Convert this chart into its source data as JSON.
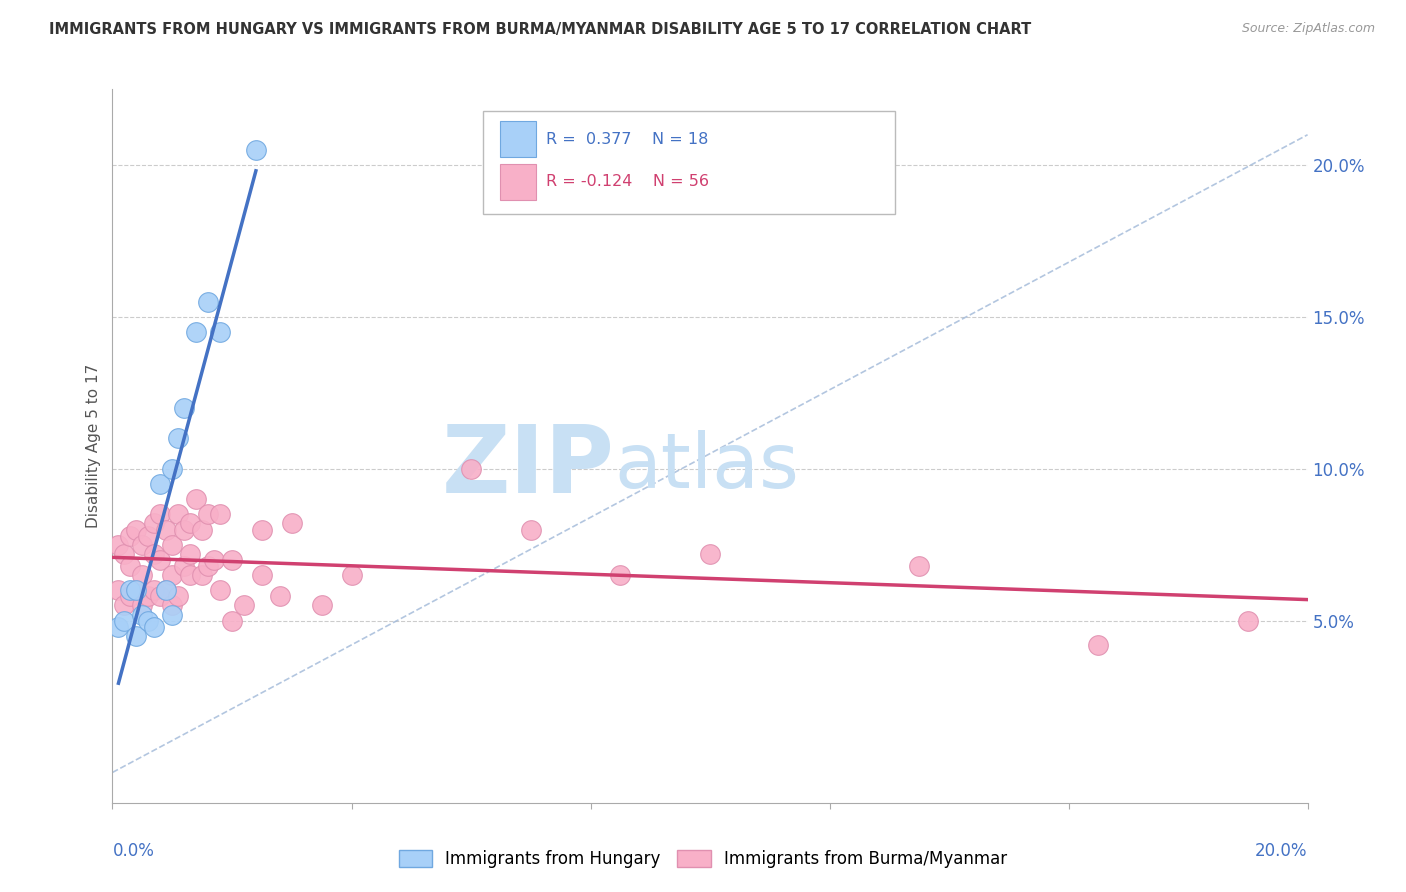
{
  "title": "IMMIGRANTS FROM HUNGARY VS IMMIGRANTS FROM BURMA/MYANMAR DISABILITY AGE 5 TO 17 CORRELATION CHART",
  "source": "Source: ZipAtlas.com",
  "ylabel": "Disability Age 5 to 17",
  "right_yticks": [
    "20.0%",
    "15.0%",
    "10.0%",
    "5.0%"
  ],
  "right_ytick_vals": [
    0.2,
    0.15,
    0.1,
    0.05
  ],
  "xlim": [
    0.0,
    0.2
  ],
  "ylim": [
    -0.01,
    0.225
  ],
  "R_hungary": 0.377,
  "N_hungary": 18,
  "R_burma": -0.124,
  "N_burma": 56,
  "color_hungary": "#A8D0F8",
  "color_burma": "#F8B0C8",
  "line_color_hungary": "#4472C4",
  "line_color_burma": "#D04070",
  "ref_line_color": "#A0B8D8",
  "watermark_zip": "ZIP",
  "watermark_atlas": "atlas",
  "watermark_color": "#C8E0F4",
  "legend_label_hungary": "Immigrants from Hungary",
  "legend_label_burma": "Immigrants from Burma/Myanmar",
  "hungary_x": [
    0.001,
    0.002,
    0.003,
    0.004,
    0.004,
    0.005,
    0.006,
    0.007,
    0.008,
    0.009,
    0.01,
    0.01,
    0.011,
    0.012,
    0.014,
    0.016,
    0.018,
    0.024
  ],
  "hungary_y": [
    0.048,
    0.05,
    0.06,
    0.045,
    0.06,
    0.052,
    0.05,
    0.048,
    0.095,
    0.06,
    0.1,
    0.052,
    0.11,
    0.12,
    0.145,
    0.155,
    0.145,
    0.205
  ],
  "burma_x": [
    0.001,
    0.001,
    0.002,
    0.002,
    0.003,
    0.003,
    0.003,
    0.004,
    0.004,
    0.005,
    0.005,
    0.005,
    0.006,
    0.006,
    0.007,
    0.007,
    0.007,
    0.008,
    0.008,
    0.008,
    0.009,
    0.009,
    0.01,
    0.01,
    0.01,
    0.011,
    0.011,
    0.012,
    0.012,
    0.013,
    0.013,
    0.013,
    0.014,
    0.015,
    0.015,
    0.016,
    0.016,
    0.017,
    0.018,
    0.018,
    0.02,
    0.02,
    0.022,
    0.025,
    0.025,
    0.028,
    0.03,
    0.035,
    0.04,
    0.06,
    0.07,
    0.085,
    0.1,
    0.135,
    0.165,
    0.19
  ],
  "burma_y": [
    0.06,
    0.075,
    0.055,
    0.072,
    0.058,
    0.068,
    0.078,
    0.06,
    0.08,
    0.055,
    0.065,
    0.075,
    0.058,
    0.078,
    0.06,
    0.072,
    0.082,
    0.058,
    0.07,
    0.085,
    0.06,
    0.08,
    0.055,
    0.065,
    0.075,
    0.058,
    0.085,
    0.068,
    0.08,
    0.065,
    0.072,
    0.082,
    0.09,
    0.065,
    0.08,
    0.068,
    0.085,
    0.07,
    0.06,
    0.085,
    0.07,
    0.05,
    0.055,
    0.08,
    0.065,
    0.058,
    0.082,
    0.055,
    0.065,
    0.1,
    0.08,
    0.065,
    0.072,
    0.068,
    0.042,
    0.05
  ]
}
